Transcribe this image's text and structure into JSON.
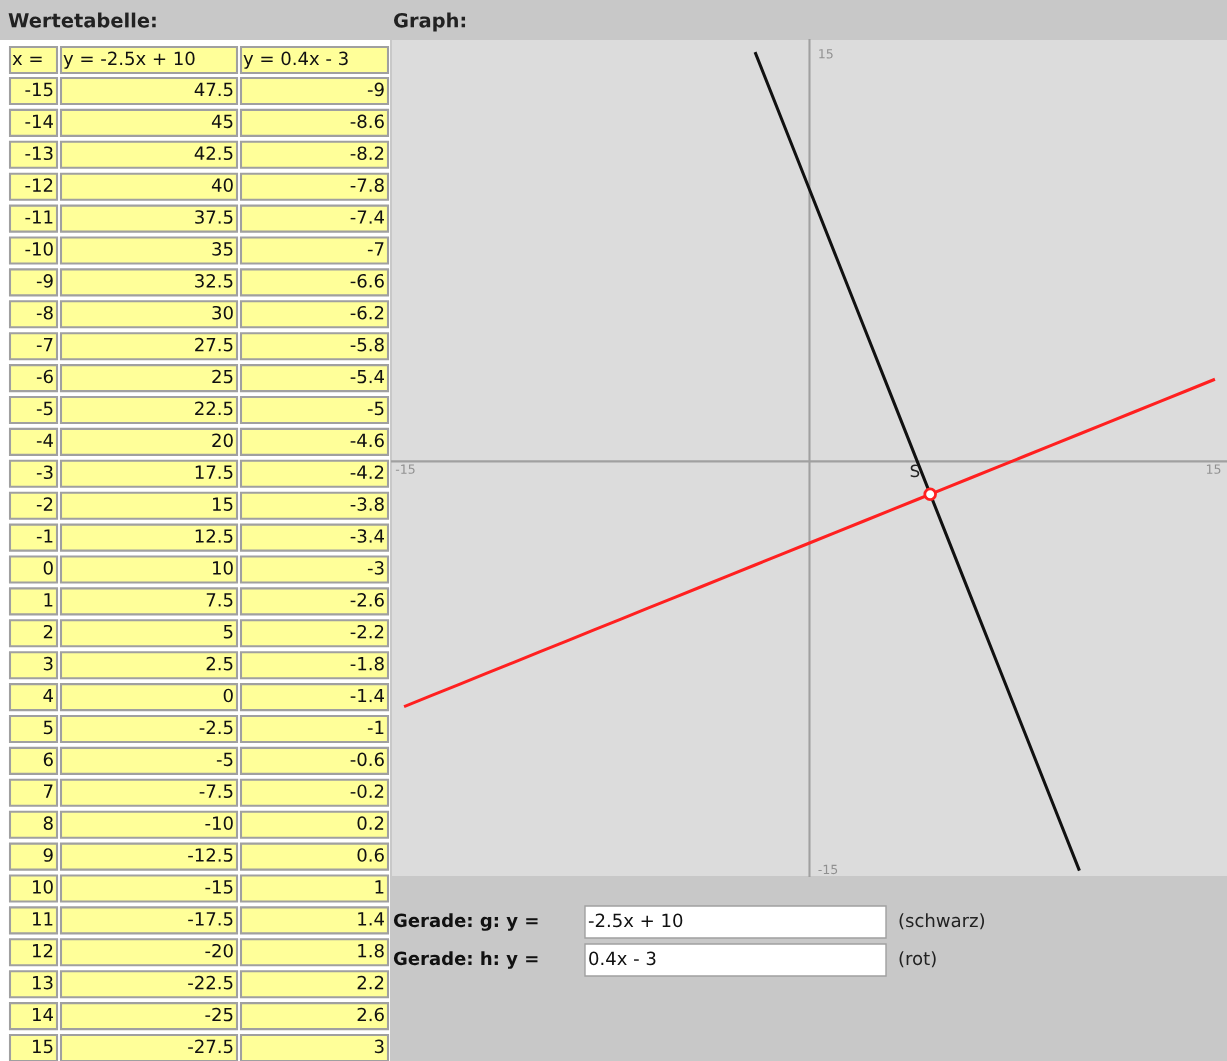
{
  "chart_data": [
    {
      "type": "other",
      "title": "Wertetabelle:",
      "annotations": [
        "x =",
        "y = -2.5x + 10",
        "y = 0.4x - 3",
        "-15",
        "47.5",
        "-9",
        "-14",
        "45",
        "-8.6",
        "-13",
        "42.5",
        "-8.2",
        "-12",
        "40",
        "-7.8",
        "-11",
        "37.5",
        "-7.4",
        "-10",
        "35",
        "-7",
        "-9",
        "32.5",
        "-6.6",
        "-8",
        "30",
        "-6.2",
        "-7",
        "27.5",
        "-5.8",
        "-6",
        "25",
        "-5.4",
        "-5",
        "22.5",
        "-5",
        "-4",
        "20",
        "-4.6",
        "-3",
        "17.5",
        "-4.2",
        "-2",
        "15",
        "-3.8",
        "-1",
        "12.5",
        "-3.4",
        "0",
        "10",
        "-3",
        "1",
        "7.5",
        "-2.6",
        "2",
        "5",
        "-2.2",
        "3",
        "2.5",
        "-1.8",
        "4",
        "0",
        "-1.4",
        "5",
        "-2.5",
        "-1",
        "6",
        "-5",
        "-0.6",
        "7",
        "-7.5",
        "-0.2",
        "8",
        "-10",
        "0.2",
        "9",
        "-12.5",
        "0.6",
        "10",
        "-15",
        "1",
        "11",
        "-17.5",
        "1.4",
        "12",
        "-20",
        "1.8",
        "13",
        "-22.5",
        "2.2",
        "14",
        "-25",
        "2.6",
        "15",
        "-27.5",
        "3"
      ]
    },
    {
      "type": "line",
      "title": "Graph:",
      "series": [
        {
          "color": "#111111",
          "x": [
            -2,
            -1,
            0,
            1,
            2,
            3,
            4,
            5,
            6,
            7,
            8,
            9,
            10
          ],
          "values": [
            15,
            12.5,
            10,
            7.5,
            5,
            2.5,
            0,
            -2.5,
            -5,
            -7.5,
            -10,
            -12.5,
            -15
          ]
        },
        {
          "color": "#ff2020",
          "x": [
            -15,
            -14,
            -13,
            -12,
            -11,
            -10,
            -9,
            -8,
            -7,
            -6,
            -5,
            -4,
            -3,
            -2,
            -1,
            0,
            1,
            2,
            3,
            4,
            5,
            6,
            7,
            8,
            9,
            10,
            11,
            12,
            13,
            14,
            15
          ],
          "values": [
            -9,
            -8.6,
            -8.2,
            -7.8,
            -7.4,
            -7,
            -6.6,
            -6.2,
            -5.8,
            -5.4,
            -5,
            -4.6,
            -4.2,
            -3.8,
            -3.4,
            -3,
            -2.6,
            -2.2,
            -1.8,
            -1.4,
            -1,
            -0.6,
            -0.2,
            0.2,
            0.6,
            1,
            1.4,
            1.8,
            2.2,
            2.6,
            3
          ]
        },
        {
          "type": "scatter",
          "color": "#ff2020",
          "marker": "circle",
          "x": [
            4.48
          ],
          "values": [
            -1.21
          ]
        }
      ],
      "xlim": [
        -15.5,
        15.5
      ],
      "ylim": [
        -15.25,
        15.5
      ],
      "xticks": [
        -15,
        15
      ],
      "yticks": [
        -15,
        15
      ],
      "annotations": [
        {
          "text": "S",
          "x": 4.48,
          "y": -1.21
        },
        "Gerade: g: y =",
        "-2.5x + 10",
        "(schwarz)",
        "Gerade: h: y =",
        "0.4x - 3",
        "(rot)"
      ]
    }
  ]
}
